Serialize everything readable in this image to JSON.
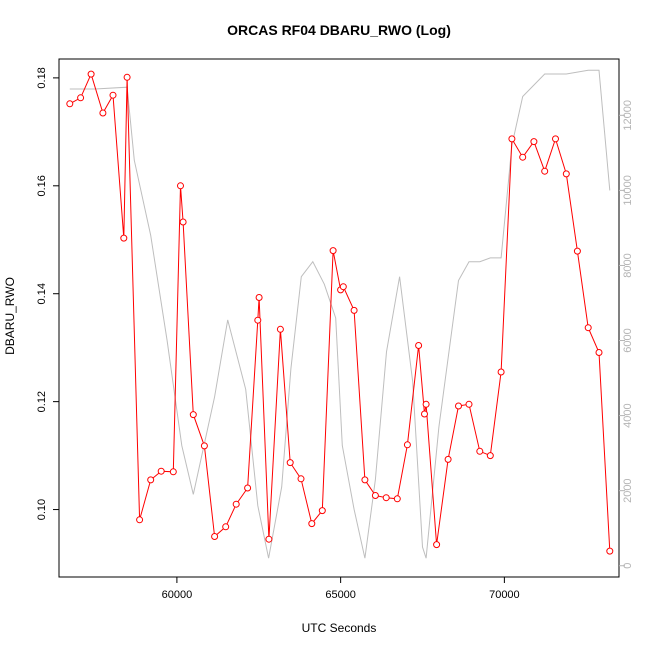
{
  "chart_data": {
    "type": "line",
    "title": "ORCAS RF04 DBARU_RWO (Log)",
    "xlabel": "UTC Seconds",
    "ylabel": "DBARU_RWO",
    "xlim": [
      56400,
      73500
    ],
    "ylim": [
      0.0875,
      0.1835
    ],
    "y2lim": [
      -300,
      13500
    ],
    "x_ticks": [
      60000,
      65000,
      70000
    ],
    "x_tick_labels": [
      "60000",
      "65000",
      "70000"
    ],
    "y_ticks": [
      0.1,
      0.12,
      0.14,
      0.16,
      0.18
    ],
    "y_tick_labels": [
      "0.10",
      "0.12",
      "0.14",
      "0.16",
      "0.18"
    ],
    "y2_ticks": [
      0,
      2000,
      4000,
      6000,
      8000,
      10000,
      12000
    ],
    "y2_tick_labels": [
      "0",
      "2000",
      "4000",
      "6000",
      "8000",
      "10000",
      "12000"
    ],
    "grid": false,
    "legend": "none",
    "series": [
      {
        "axis": "left",
        "color": "#ff0000",
        "marker": "open-circle",
        "x": [
          56730,
          57060,
          57380,
          57740,
          58050,
          58380,
          58480,
          58860,
          59200,
          59520,
          59890,
          60110,
          60190,
          60500,
          60840,
          61150,
          61490,
          61810,
          62160,
          62470,
          62510,
          62810,
          63160,
          63460,
          63790,
          64120,
          64440,
          64770,
          65000,
          65080,
          65410,
          65740,
          66060,
          66390,
          66730,
          67040,
          67380,
          67560,
          67610,
          67930,
          68280,
          68600,
          68920,
          69250,
          69570,
          69900,
          70230,
          70560,
          70900,
          71230,
          71560,
          71890,
          72230,
          72560,
          72890,
          73220
        ],
        "y": [
          0.1752,
          0.1763,
          0.1807,
          0.1735,
          0.1768,
          0.1503,
          0.1801,
          0.0981,
          0.1055,
          0.1071,
          0.107,
          0.16,
          0.1533,
          0.1176,
          0.1118,
          0.095,
          0.0968,
          0.101,
          0.104,
          0.1351,
          0.1393,
          0.0945,
          0.1334,
          0.1087,
          0.1057,
          0.0974,
          0.0998,
          0.148,
          0.1407,
          0.1413,
          0.1369,
          0.1055,
          0.1026,
          0.1022,
          0.102,
          0.112,
          0.1304,
          0.1177,
          0.1195,
          0.0935,
          0.1093,
          0.1192,
          0.1195,
          0.1108,
          0.11,
          0.1255,
          0.1687,
          0.1653,
          0.1682,
          0.1627,
          0.1687,
          0.1622,
          0.1479,
          0.1337,
          0.1291,
          0.0923
        ]
      },
      {
        "axis": "right",
        "color": "#bebebe",
        "marker": "none",
        "x": [
          56730,
          57500,
          58480,
          58700,
          59200,
          59700,
          60150,
          60500,
          61150,
          61550,
          62100,
          62470,
          62800,
          63200,
          63480,
          63800,
          64150,
          64500,
          64850,
          65050,
          65410,
          65740,
          66060,
          66400,
          66800,
          67200,
          67500,
          67610,
          68000,
          68600,
          68920,
          69250,
          69570,
          69900,
          70230,
          70560,
          71230,
          71890,
          72560,
          72890,
          73220
        ],
        "y": [
          12700,
          12700,
          12750,
          10800,
          8800,
          6000,
          3200,
          1900,
          4500,
          6550,
          4700,
          1600,
          200,
          2100,
          5250,
          7700,
          8100,
          7500,
          6600,
          3200,
          1500,
          200,
          2300,
          5700,
          7700,
          4900,
          500,
          200,
          3700,
          7600,
          8100,
          8100,
          8200,
          8200,
          11200,
          12500,
          13100,
          13100,
          13200,
          13200,
          10000
        ]
      }
    ]
  }
}
